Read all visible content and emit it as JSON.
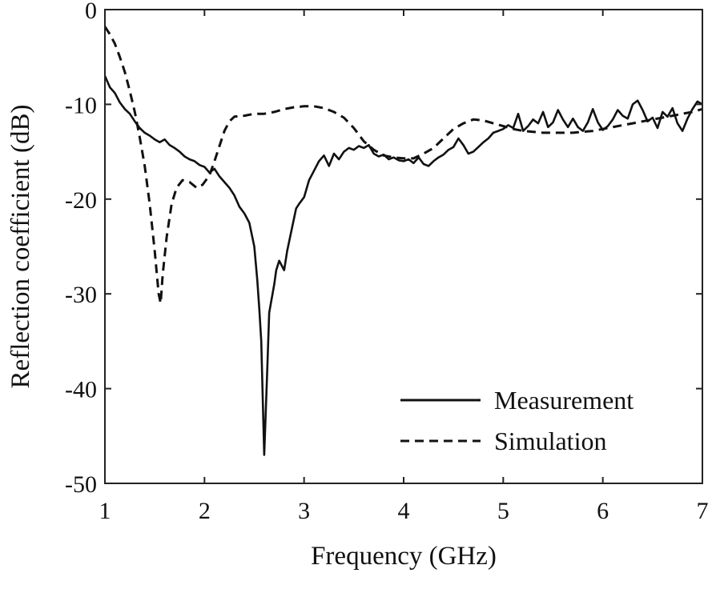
{
  "chart_data": {
    "type": "line",
    "title": "",
    "xlabel": "Frequency  (GHz)",
    "ylabel": "Reflection  coefficient  (dB)",
    "xlim": [
      1,
      7
    ],
    "ylim": [
      -50,
      0
    ],
    "xticks": [
      1,
      2,
      3,
      4,
      5,
      6,
      7
    ],
    "yticks": [
      0,
      -10,
      -20,
      -30,
      -40,
      -50
    ],
    "xtick_labels": [
      "1",
      "2",
      "3",
      "4",
      "5",
      "6",
      "7"
    ],
    "ytick_labels": [
      "0",
      "-10",
      "-20",
      "-30",
      "-40",
      "-50"
    ],
    "grid": false,
    "legend_position": "bottom-right",
    "series": [
      {
        "name": "Measurement",
        "style": "solid",
        "color": "#111111",
        "points": [
          [
            1.0,
            -7.0
          ],
          [
            1.05,
            -8.2
          ],
          [
            1.1,
            -8.8
          ],
          [
            1.15,
            -9.8
          ],
          [
            1.2,
            -10.5
          ],
          [
            1.25,
            -11.0
          ],
          [
            1.3,
            -11.8
          ],
          [
            1.35,
            -12.5
          ],
          [
            1.4,
            -13.0
          ],
          [
            1.45,
            -13.3
          ],
          [
            1.5,
            -13.7
          ],
          [
            1.55,
            -14.0
          ],
          [
            1.6,
            -13.7
          ],
          [
            1.65,
            -14.3
          ],
          [
            1.7,
            -14.6
          ],
          [
            1.75,
            -15.0
          ],
          [
            1.8,
            -15.5
          ],
          [
            1.85,
            -15.8
          ],
          [
            1.9,
            -16.0
          ],
          [
            1.95,
            -16.4
          ],
          [
            2.0,
            -16.6
          ],
          [
            2.05,
            -17.2
          ],
          [
            2.1,
            -16.8
          ],
          [
            2.15,
            -17.6
          ],
          [
            2.2,
            -18.2
          ],
          [
            2.25,
            -18.8
          ],
          [
            2.3,
            -19.6
          ],
          [
            2.35,
            -20.8
          ],
          [
            2.4,
            -21.5
          ],
          [
            2.45,
            -22.5
          ],
          [
            2.5,
            -25.0
          ],
          [
            2.53,
            -28.5
          ],
          [
            2.55,
            -31.5
          ],
          [
            2.57,
            -35.0
          ],
          [
            2.6,
            -47.0
          ],
          [
            2.63,
            -38.0
          ],
          [
            2.65,
            -32.0
          ],
          [
            2.7,
            -29.0
          ],
          [
            2.72,
            -27.5
          ],
          [
            2.75,
            -26.5
          ],
          [
            2.8,
            -27.5
          ],
          [
            2.83,
            -25.5
          ],
          [
            2.88,
            -23.0
          ],
          [
            2.92,
            -21.0
          ],
          [
            2.95,
            -20.5
          ],
          [
            3.0,
            -19.8
          ],
          [
            3.05,
            -18.0
          ],
          [
            3.1,
            -17.0
          ],
          [
            3.15,
            -16.0
          ],
          [
            3.2,
            -15.4
          ],
          [
            3.25,
            -16.5
          ],
          [
            3.3,
            -15.2
          ],
          [
            3.35,
            -15.8
          ],
          [
            3.4,
            -15.0
          ],
          [
            3.45,
            -14.6
          ],
          [
            3.5,
            -14.8
          ],
          [
            3.55,
            -14.4
          ],
          [
            3.6,
            -14.6
          ],
          [
            3.65,
            -14.3
          ],
          [
            3.7,
            -15.2
          ],
          [
            3.75,
            -15.5
          ],
          [
            3.8,
            -15.3
          ],
          [
            3.85,
            -15.8
          ],
          [
            3.9,
            -15.6
          ],
          [
            3.95,
            -15.9
          ],
          [
            4.0,
            -16.0
          ],
          [
            4.05,
            -15.8
          ],
          [
            4.1,
            -16.2
          ],
          [
            4.15,
            -15.6
          ],
          [
            4.2,
            -16.3
          ],
          [
            4.25,
            -16.5
          ],
          [
            4.3,
            -16.0
          ],
          [
            4.35,
            -15.6
          ],
          [
            4.4,
            -15.3
          ],
          [
            4.45,
            -14.8
          ],
          [
            4.5,
            -14.5
          ],
          [
            4.55,
            -13.6
          ],
          [
            4.6,
            -14.3
          ],
          [
            4.65,
            -15.2
          ],
          [
            4.7,
            -15.0
          ],
          [
            4.75,
            -14.5
          ],
          [
            4.8,
            -14.0
          ],
          [
            4.85,
            -13.6
          ],
          [
            4.9,
            -13.0
          ],
          [
            4.95,
            -12.8
          ],
          [
            5.0,
            -12.6
          ],
          [
            5.05,
            -12.2
          ],
          [
            5.1,
            -12.5
          ],
          [
            5.15,
            -11.0
          ],
          [
            5.2,
            -12.8
          ],
          [
            5.25,
            -12.3
          ],
          [
            5.3,
            -11.6
          ],
          [
            5.35,
            -12.0
          ],
          [
            5.4,
            -10.8
          ],
          [
            5.45,
            -12.4
          ],
          [
            5.5,
            -11.9
          ],
          [
            5.55,
            -10.6
          ],
          [
            5.6,
            -11.6
          ],
          [
            5.65,
            -12.4
          ],
          [
            5.7,
            -11.5
          ],
          [
            5.75,
            -12.4
          ],
          [
            5.8,
            -12.8
          ],
          [
            5.85,
            -11.9
          ],
          [
            5.9,
            -10.5
          ],
          [
            5.95,
            -11.9
          ],
          [
            6.0,
            -12.7
          ],
          [
            6.05,
            -12.3
          ],
          [
            6.1,
            -11.6
          ],
          [
            6.15,
            -10.6
          ],
          [
            6.2,
            -11.2
          ],
          [
            6.25,
            -11.5
          ],
          [
            6.3,
            -10.0
          ],
          [
            6.35,
            -9.6
          ],
          [
            6.4,
            -10.6
          ],
          [
            6.45,
            -11.8
          ],
          [
            6.5,
            -11.4
          ],
          [
            6.55,
            -12.5
          ],
          [
            6.6,
            -10.8
          ],
          [
            6.65,
            -11.3
          ],
          [
            6.7,
            -10.4
          ],
          [
            6.75,
            -12.0
          ],
          [
            6.8,
            -12.8
          ],
          [
            6.85,
            -11.5
          ],
          [
            6.9,
            -10.5
          ],
          [
            6.95,
            -9.7
          ],
          [
            7.0,
            -10.0
          ]
        ]
      },
      {
        "name": "Simulation",
        "style": "dashed",
        "color": "#111111",
        "points": [
          [
            1.0,
            -1.8
          ],
          [
            1.05,
            -2.6
          ],
          [
            1.1,
            -3.6
          ],
          [
            1.15,
            -5.0
          ],
          [
            1.2,
            -6.6
          ],
          [
            1.25,
            -8.6
          ],
          [
            1.3,
            -10.8
          ],
          [
            1.35,
            -13.5
          ],
          [
            1.4,
            -16.5
          ],
          [
            1.45,
            -20.5
          ],
          [
            1.5,
            -25.5
          ],
          [
            1.54,
            -30.0
          ],
          [
            1.56,
            -31.0
          ],
          [
            1.58,
            -28.0
          ],
          [
            1.62,
            -24.0
          ],
          [
            1.67,
            -20.5
          ],
          [
            1.72,
            -18.8
          ],
          [
            1.78,
            -18.0
          ],
          [
            1.85,
            -18.2
          ],
          [
            1.92,
            -18.8
          ],
          [
            1.98,
            -18.5
          ],
          [
            2.05,
            -17.5
          ],
          [
            2.1,
            -16.0
          ],
          [
            2.15,
            -14.4
          ],
          [
            2.2,
            -12.8
          ],
          [
            2.25,
            -11.8
          ],
          [
            2.3,
            -11.3
          ],
          [
            2.4,
            -11.2
          ],
          [
            2.5,
            -11.0
          ],
          [
            2.6,
            -11.0
          ],
          [
            2.7,
            -10.8
          ],
          [
            2.8,
            -10.5
          ],
          [
            2.9,
            -10.3
          ],
          [
            3.0,
            -10.2
          ],
          [
            3.1,
            -10.2
          ],
          [
            3.2,
            -10.4
          ],
          [
            3.3,
            -10.8
          ],
          [
            3.4,
            -11.4
          ],
          [
            3.5,
            -12.5
          ],
          [
            3.6,
            -13.9
          ],
          [
            3.7,
            -14.8
          ],
          [
            3.8,
            -15.4
          ],
          [
            3.9,
            -15.6
          ],
          [
            4.0,
            -15.7
          ],
          [
            4.1,
            -15.7
          ],
          [
            4.2,
            -15.2
          ],
          [
            4.3,
            -14.6
          ],
          [
            4.4,
            -13.6
          ],
          [
            4.5,
            -12.6
          ],
          [
            4.6,
            -12.0
          ],
          [
            4.7,
            -11.6
          ],
          [
            4.8,
            -11.7
          ],
          [
            4.9,
            -12.0
          ],
          [
            5.0,
            -12.3
          ],
          [
            5.1,
            -12.6
          ],
          [
            5.2,
            -12.8
          ],
          [
            5.3,
            -12.9
          ],
          [
            5.4,
            -13.0
          ],
          [
            5.5,
            -13.0
          ],
          [
            5.6,
            -13.0
          ],
          [
            5.7,
            -13.0
          ],
          [
            5.8,
            -12.9
          ],
          [
            5.9,
            -12.8
          ],
          [
            6.0,
            -12.6
          ],
          [
            6.1,
            -12.4
          ],
          [
            6.2,
            -12.2
          ],
          [
            6.3,
            -12.0
          ],
          [
            6.4,
            -11.8
          ],
          [
            6.5,
            -11.6
          ],
          [
            6.6,
            -11.4
          ],
          [
            6.7,
            -11.2
          ],
          [
            6.8,
            -11.0
          ],
          [
            6.9,
            -10.8
          ],
          [
            7.0,
            -10.5
          ]
        ]
      }
    ],
    "legend": [
      {
        "label": "Measurement",
        "style": "solid"
      },
      {
        "label": "Simulation",
        "style": "dashed"
      }
    ]
  }
}
